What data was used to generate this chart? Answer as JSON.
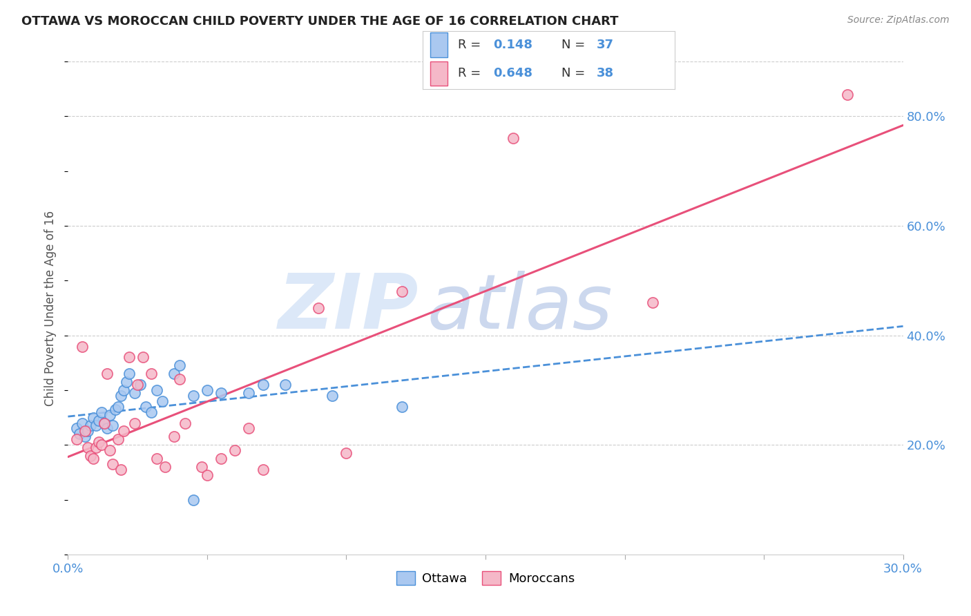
{
  "title": "OTTAWA VS MOROCCAN CHILD POVERTY UNDER THE AGE OF 16 CORRELATION CHART",
  "source": "Source: ZipAtlas.com",
  "ylabel": "Child Poverty Under the Age of 16",
  "xlim": [
    0.0,
    0.3
  ],
  "ylim": [
    0.0,
    0.9
  ],
  "yticks": [
    0.2,
    0.4,
    0.6,
    0.8
  ],
  "ytick_labels": [
    "20.0%",
    "40.0%",
    "60.0%",
    "80.0%"
  ],
  "xtick_first": "0.0%",
  "xtick_last": "30.0%",
  "ottawa_color": "#aac8f0",
  "moroccan_color": "#f5b8c8",
  "trend_ottawa_color": "#4a90d9",
  "trend_moroccan_color": "#e8507a",
  "R_ottawa": 0.148,
  "N_ottawa": 37,
  "R_moroccan": 0.648,
  "N_moroccan": 38,
  "watermark_zip": "ZIP",
  "watermark_atlas": "atlas",
  "background_color": "#ffffff",
  "grid_color": "#cccccc",
  "ottawa_points_x": [
    0.003,
    0.004,
    0.005,
    0.006,
    0.007,
    0.008,
    0.009,
    0.01,
    0.011,
    0.012,
    0.013,
    0.014,
    0.015,
    0.016,
    0.017,
    0.018,
    0.019,
    0.02,
    0.021,
    0.022,
    0.024,
    0.026,
    0.028,
    0.03,
    0.032,
    0.034,
    0.038,
    0.04,
    0.045,
    0.05,
    0.055,
    0.065,
    0.07,
    0.078,
    0.095,
    0.12,
    0.045
  ],
  "ottawa_points_y": [
    0.23,
    0.22,
    0.24,
    0.215,
    0.225,
    0.235,
    0.25,
    0.235,
    0.245,
    0.26,
    0.24,
    0.23,
    0.255,
    0.235,
    0.265,
    0.27,
    0.29,
    0.3,
    0.315,
    0.33,
    0.295,
    0.31,
    0.27,
    0.26,
    0.3,
    0.28,
    0.33,
    0.345,
    0.29,
    0.3,
    0.295,
    0.295,
    0.31,
    0.31,
    0.29,
    0.27,
    0.1
  ],
  "moroccan_points_x": [
    0.003,
    0.005,
    0.006,
    0.007,
    0.008,
    0.009,
    0.01,
    0.011,
    0.012,
    0.013,
    0.014,
    0.015,
    0.016,
    0.018,
    0.019,
    0.02,
    0.022,
    0.024,
    0.025,
    0.027,
    0.03,
    0.032,
    0.035,
    0.038,
    0.04,
    0.042,
    0.048,
    0.05,
    0.055,
    0.06,
    0.065,
    0.07,
    0.09,
    0.1,
    0.12,
    0.16,
    0.21,
    0.28
  ],
  "moroccan_points_y": [
    0.21,
    0.38,
    0.225,
    0.195,
    0.18,
    0.175,
    0.195,
    0.205,
    0.2,
    0.24,
    0.33,
    0.19,
    0.165,
    0.21,
    0.155,
    0.225,
    0.36,
    0.24,
    0.31,
    0.36,
    0.33,
    0.175,
    0.16,
    0.215,
    0.32,
    0.24,
    0.16,
    0.145,
    0.175,
    0.19,
    0.23,
    0.155,
    0.45,
    0.185,
    0.48,
    0.76,
    0.46,
    0.84
  ]
}
